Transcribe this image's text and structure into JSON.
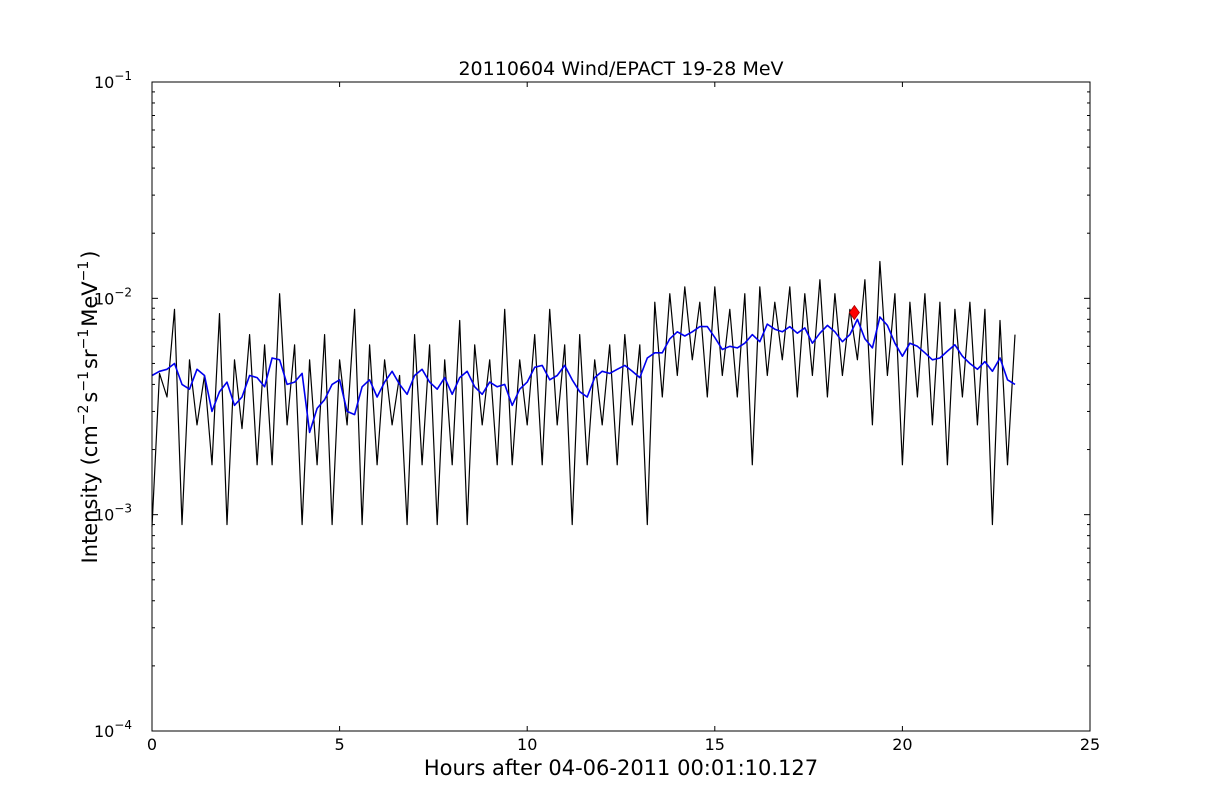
{
  "chart_data": {
    "type": "line",
    "title": "20110604 Wind/EPACT 19-28 MeV",
    "xlabel": "Hours after 04-06-2011 00:01:10.127",
    "ylabel": {
      "prefix": "Intensity (cm",
      "exp1": "−2",
      "mid1": "s",
      "exp2": "−1",
      "mid2": "sr",
      "exp3": "−1",
      "mid3": "MeV",
      "exp4": "−1",
      "suffix": ")"
    },
    "xlim": [
      0,
      25
    ],
    "ylim": [
      0.0001,
      0.1
    ],
    "yscale": "log",
    "grid": false,
    "x_ticks": [
      {
        "value": 0,
        "label": "0"
      },
      {
        "value": 5,
        "label": "5"
      },
      {
        "value": 10,
        "label": "10"
      },
      {
        "value": 15,
        "label": "15"
      },
      {
        "value": 20,
        "label": "20"
      },
      {
        "value": 25,
        "label": "25"
      }
    ],
    "y_ticks": [
      {
        "value": 0.0001,
        "base": "10",
        "exp": "−4"
      },
      {
        "value": 0.001,
        "base": "10",
        "exp": "−3"
      },
      {
        "value": 0.01,
        "base": "10",
        "exp": "−2"
      },
      {
        "value": 0.1,
        "base": "10",
        "exp": "−1"
      }
    ],
    "series": [
      {
        "color": "#000000",
        "x": [
          0.0,
          0.2,
          0.4,
          0.6,
          0.8,
          1.0,
          1.2,
          1.4,
          1.6,
          1.8,
          2.0,
          2.2,
          2.4,
          2.6,
          2.8,
          3.0,
          3.2,
          3.4,
          3.6,
          3.8,
          4.0,
          4.2,
          4.4,
          4.6,
          4.8,
          5.0,
          5.2,
          5.4,
          5.6,
          5.8,
          6.0,
          6.2,
          6.4,
          6.6,
          6.8,
          7.0,
          7.2,
          7.4,
          7.6,
          7.8,
          8.0,
          8.2,
          8.4,
          8.6,
          8.8,
          9.0,
          9.2,
          9.4,
          9.6,
          9.8,
          10.0,
          10.2,
          10.4,
          10.6,
          10.8,
          11.0,
          11.2,
          11.4,
          11.6,
          11.8,
          12.0,
          12.2,
          12.4,
          12.6,
          12.8,
          13.0,
          13.2,
          13.4,
          13.6,
          13.8,
          14.0,
          14.2,
          14.4,
          14.6,
          14.8,
          15.0,
          15.2,
          15.4,
          15.6,
          15.8,
          16.0,
          16.2,
          16.4,
          16.6,
          16.8,
          17.0,
          17.2,
          17.4,
          17.6,
          17.8,
          18.0,
          18.2,
          18.4,
          18.6,
          18.8,
          19.0,
          19.2,
          19.4,
          19.6,
          19.8,
          20.0,
          20.2,
          20.4,
          20.6,
          20.8,
          21.0,
          21.2,
          21.4,
          21.6,
          21.8,
          22.0,
          22.2,
          22.4,
          22.6,
          22.8,
          23.0
        ],
        "values": [
          0.00088,
          0.0045,
          0.0035,
          0.0089,
          0.0009,
          0.0052,
          0.0026,
          0.0044,
          0.0017,
          0.0085,
          0.0009,
          0.0052,
          0.0025,
          0.0068,
          0.0017,
          0.0061,
          0.0017,
          0.0105,
          0.0026,
          0.0061,
          0.0009,
          0.0052,
          0.0017,
          0.0068,
          0.0009,
          0.0052,
          0.0026,
          0.0089,
          0.0009,
          0.0061,
          0.0017,
          0.0052,
          0.0026,
          0.0044,
          0.0009,
          0.0068,
          0.0017,
          0.0061,
          0.0009,
          0.0052,
          0.0017,
          0.0079,
          0.0009,
          0.0061,
          0.0026,
          0.0052,
          0.0017,
          0.0089,
          0.0017,
          0.0052,
          0.0026,
          0.0068,
          0.0017,
          0.0089,
          0.0026,
          0.0061,
          0.0009,
          0.0068,
          0.0017,
          0.0052,
          0.0026,
          0.0061,
          0.0017,
          0.0068,
          0.0026,
          0.0061,
          0.0009,
          0.0096,
          0.0035,
          0.0105,
          0.0044,
          0.0113,
          0.0052,
          0.0096,
          0.0035,
          0.0113,
          0.0044,
          0.0089,
          0.0035,
          0.0105,
          0.0017,
          0.0113,
          0.0044,
          0.0096,
          0.0052,
          0.0113,
          0.0035,
          0.0105,
          0.0044,
          0.0122,
          0.0035,
          0.0105,
          0.0044,
          0.0089,
          0.0052,
          0.0122,
          0.0026,
          0.0148,
          0.0044,
          0.0105,
          0.0017,
          0.0096,
          0.0035,
          0.0105,
          0.0026,
          0.0096,
          0.0017,
          0.0089,
          0.0035,
          0.0096,
          0.0026,
          0.0089,
          0.0009,
          0.0079,
          0.0017,
          0.0068
        ]
      },
      {
        "color": "#0000ee",
        "x": [
          0.0,
          0.2,
          0.4,
          0.6,
          0.8,
          1.0,
          1.2,
          1.4,
          1.6,
          1.8,
          2.0,
          2.2,
          2.4,
          2.6,
          2.8,
          3.0,
          3.2,
          3.4,
          3.6,
          3.8,
          4.0,
          4.2,
          4.4,
          4.6,
          4.8,
          5.0,
          5.2,
          5.4,
          5.6,
          5.8,
          6.0,
          6.2,
          6.4,
          6.6,
          6.8,
          7.0,
          7.2,
          7.4,
          7.6,
          7.8,
          8.0,
          8.2,
          8.4,
          8.6,
          8.8,
          9.0,
          9.2,
          9.4,
          9.6,
          9.8,
          10.0,
          10.2,
          10.4,
          10.6,
          10.8,
          11.0,
          11.2,
          11.4,
          11.6,
          11.8,
          12.0,
          12.2,
          12.4,
          12.6,
          12.8,
          13.0,
          13.2,
          13.4,
          13.6,
          13.8,
          14.0,
          14.2,
          14.4,
          14.6,
          14.8,
          15.0,
          15.2,
          15.4,
          15.6,
          15.8,
          16.0,
          16.2,
          16.4,
          16.6,
          16.8,
          17.0,
          17.2,
          17.4,
          17.6,
          17.8,
          18.0,
          18.2,
          18.4,
          18.6,
          18.8,
          19.0,
          19.2,
          19.4,
          19.6,
          19.8,
          20.0,
          20.2,
          20.4,
          20.6,
          20.8,
          21.0,
          21.2,
          21.4,
          21.6,
          21.8,
          22.0,
          22.2,
          22.4,
          22.6,
          22.8,
          23.0
        ],
        "values": [
          0.0044,
          0.0046,
          0.0047,
          0.005,
          0.004,
          0.0038,
          0.0047,
          0.0044,
          0.003,
          0.0037,
          0.0041,
          0.0032,
          0.0035,
          0.0044,
          0.0043,
          0.0039,
          0.0053,
          0.0052,
          0.004,
          0.0041,
          0.0045,
          0.0024,
          0.0031,
          0.0034,
          0.004,
          0.0042,
          0.003,
          0.0029,
          0.0039,
          0.0042,
          0.0035,
          0.0041,
          0.0046,
          0.004,
          0.0036,
          0.0044,
          0.0047,
          0.0041,
          0.0038,
          0.0043,
          0.0036,
          0.0043,
          0.0046,
          0.0039,
          0.0036,
          0.0041,
          0.0039,
          0.004,
          0.0032,
          0.0038,
          0.0041,
          0.0048,
          0.0049,
          0.0042,
          0.0044,
          0.0049,
          0.0042,
          0.0037,
          0.0035,
          0.0043,
          0.0046,
          0.0045,
          0.0047,
          0.0049,
          0.0046,
          0.0043,
          0.0053,
          0.0056,
          0.0056,
          0.0065,
          0.007,
          0.0067,
          0.007,
          0.0074,
          0.0074,
          0.0066,
          0.0058,
          0.006,
          0.0059,
          0.0062,
          0.0068,
          0.0063,
          0.0076,
          0.0072,
          0.007,
          0.0074,
          0.0069,
          0.0073,
          0.0062,
          0.0069,
          0.0075,
          0.007,
          0.0063,
          0.0068,
          0.008,
          0.0065,
          0.0059,
          0.0082,
          0.0075,
          0.0062,
          0.0054,
          0.0062,
          0.006,
          0.0056,
          0.0052,
          0.0053,
          0.0057,
          0.0061,
          0.0054,
          0.005,
          0.0047,
          0.0051,
          0.0046,
          0.0053,
          0.0042,
          0.004
        ]
      }
    ],
    "marker": {
      "x": 18.72,
      "y": 0.0086,
      "shape": "diamond",
      "color": "#ff0000"
    }
  }
}
